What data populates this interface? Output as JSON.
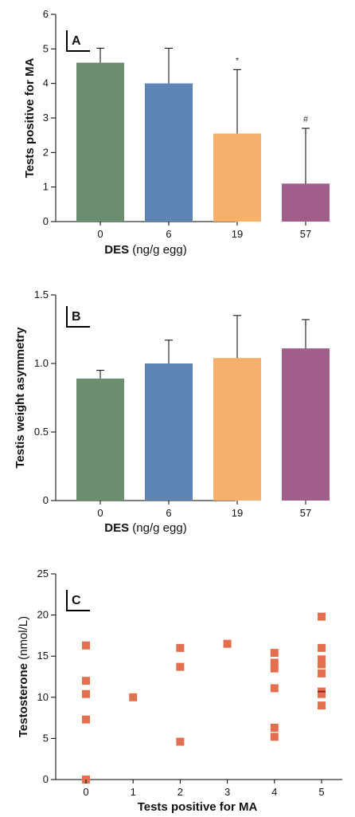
{
  "colors": {
    "green": "#6b8f6e",
    "blue": "#5e84b3",
    "orange": "#f7b06b",
    "purple": "#a25e8a",
    "scatter": "#e46f4f",
    "scatter_dark": "#9c1a1a"
  },
  "chart_data": [
    {
      "type": "bar",
      "panel": "A",
      "categories": [
        "0",
        "6",
        "19",
        "57"
      ],
      "values": [
        4.6,
        4.0,
        2.55,
        1.1
      ],
      "errors": [
        0.42,
        1.02,
        1.85,
        1.6
      ],
      "bar_colors": [
        "#6b8f6e",
        "#5e84b3",
        "#f7b06b",
        "#a25e8a"
      ],
      "annotations": [
        "",
        "",
        "*",
        "#"
      ],
      "xlabel_bold": "DES",
      "xlabel_rest": " (ng/g egg)",
      "ylabel": "Tests positive for MA",
      "ylim": [
        0,
        6
      ],
      "yticks": [
        "0",
        "1",
        "2",
        "3",
        "4",
        "5",
        "6"
      ]
    },
    {
      "type": "bar",
      "panel": "B",
      "categories": [
        "0",
        "6",
        "19",
        "57"
      ],
      "values": [
        0.89,
        1.0,
        1.04,
        1.11
      ],
      "errors": [
        0.06,
        0.17,
        0.31,
        0.21
      ],
      "bar_colors": [
        "#6b8f6e",
        "#5e84b3",
        "#f7b06b",
        "#a25e8a"
      ],
      "annotations": [
        "",
        "",
        "",
        ""
      ],
      "xlabel_bold": "DES",
      "xlabel_rest": " (ng/g egg)",
      "ylabel": "Testis weight asymmetry",
      "ylim": [
        0,
        1.5
      ],
      "yticks": [
        "0",
        "0.5",
        "1.0",
        "1.5"
      ]
    },
    {
      "type": "scatter",
      "panel": "C",
      "x_categories": [
        "0",
        "1",
        "2",
        "3",
        "4",
        "5"
      ],
      "points": [
        {
          "x": 0,
          "y": 16.3
        },
        {
          "x": 0,
          "y": 12.0
        },
        {
          "x": 0,
          "y": 10.4
        },
        {
          "x": 0,
          "y": 7.3
        },
        {
          "x": 0,
          "y": 0.0
        },
        {
          "x": 1,
          "y": 10.0
        },
        {
          "x": 2,
          "y": 16.0
        },
        {
          "x": 2,
          "y": 13.7
        },
        {
          "x": 2,
          "y": 4.6
        },
        {
          "x": 3,
          "y": 16.5
        },
        {
          "x": 4,
          "y": 15.4
        },
        {
          "x": 4,
          "y": 14.2
        },
        {
          "x": 4,
          "y": 13.5
        },
        {
          "x": 4,
          "y": 11.1
        },
        {
          "x": 4,
          "y": 6.3
        },
        {
          "x": 4,
          "y": 5.2
        },
        {
          "x": 5,
          "y": 19.8
        },
        {
          "x": 5,
          "y": 16.0
        },
        {
          "x": 5,
          "y": 14.6
        },
        {
          "x": 5,
          "y": 14.0
        },
        {
          "x": 5,
          "y": 12.9
        },
        {
          "x": 5,
          "y": 10.7
        },
        {
          "x": 5,
          "y": 10.4
        },
        {
          "x": 5,
          "y": 9.0
        }
      ],
      "xlabel": "Tests positive for MA",
      "ylabel_bold": "Testosterone",
      "ylabel_rest": " (nmol/L)",
      "ylim": [
        0,
        25
      ],
      "yticks": [
        "0",
        "5",
        "10",
        "15",
        "20",
        "25"
      ]
    }
  ]
}
